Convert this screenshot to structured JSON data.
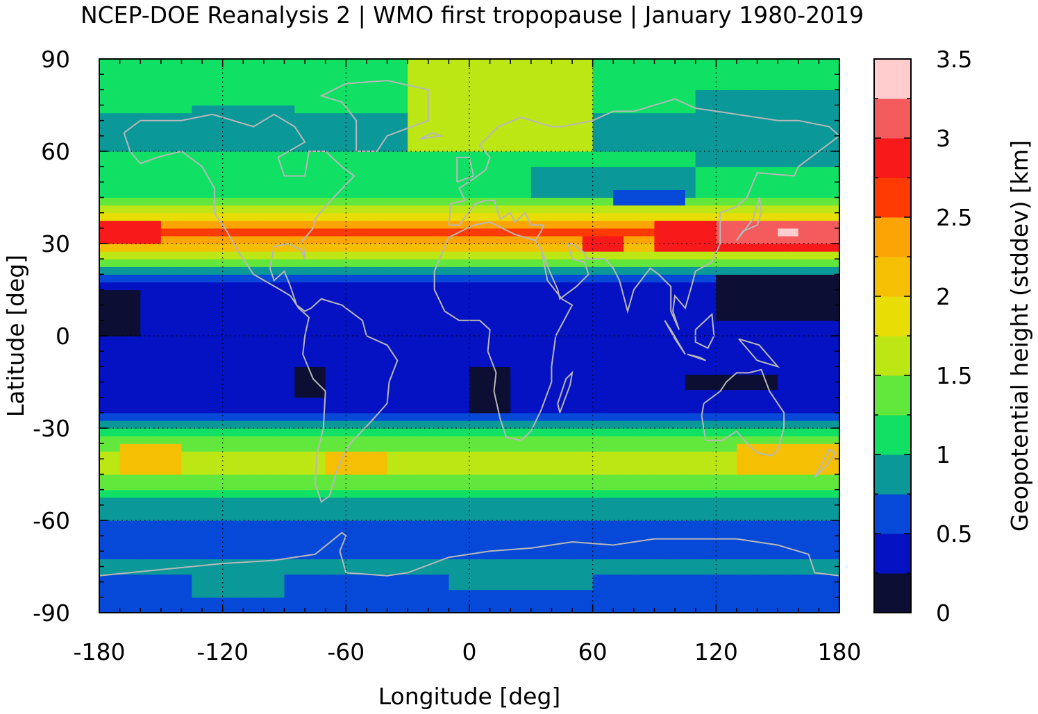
{
  "title": "NCEP-DOE Reanalysis 2 | WMO first tropopause | January 1980-2019",
  "chart_data": {
    "type": "heatmap",
    "xlabel": "Longitude [deg]",
    "ylabel": "Latitude [deg]",
    "xlim": [
      -180,
      180
    ],
    "ylim": [
      -90,
      90
    ],
    "x_ticks": [
      "-180",
      "-120",
      "-60",
      "0",
      "60",
      "120",
      "180"
    ],
    "y_ticks": [
      "90",
      "60",
      "30",
      "0",
      "-30",
      "-60",
      "-90"
    ],
    "grid": "dotted",
    "colorbar": {
      "label": "Geopotential height (stddev) [km]",
      "range": [
        0,
        3.5
      ],
      "step": 0.25,
      "tick_labels": [
        "3.5",
        "3",
        "2.5",
        "2",
        "1.5",
        "1",
        "0.5",
        "0"
      ],
      "colors": [
        "#0c0f33",
        "#0412c4",
        "#0648d8",
        "#0a9899",
        "#10e063",
        "#62e73c",
        "#bde615",
        "#e8dd05",
        "#f5c004",
        "#fba403",
        "#ff3b03",
        "#f8191a",
        "#f45b5d",
        "#ffcdcd"
      ],
      "placement": "right"
    },
    "zonal_profile": {
      "lat": [
        -90,
        -85,
        -80,
        -75,
        -70,
        -65,
        -60,
        -55,
        -50,
        -45,
        -40,
        -35,
        -30,
        -25,
        -20,
        -15,
        -10,
        -5,
        0,
        5,
        10,
        15,
        20,
        25,
        30,
        35,
        40,
        45,
        50,
        55,
        60,
        65,
        70,
        75,
        80,
        85,
        90
      ],
      "stddev_km": [
        0.6,
        0.65,
        0.7,
        0.8,
        0.7,
        0.6,
        0.7,
        0.9,
        1.2,
        1.5,
        1.7,
        1.4,
        0.9,
        0.5,
        0.45,
        0.4,
        0.4,
        0.35,
        0.35,
        0.35,
        0.4,
        0.45,
        0.6,
        1.5,
        2.4,
        2.6,
        1.6,
        1.2,
        1.1,
        1.05,
        1.0,
        0.95,
        0.95,
        1.05,
        1.15,
        1.2,
        1.25
      ]
    },
    "anomalies": [
      {
        "lon": [
          -180,
          -150
        ],
        "lat": [
          30,
          38
        ],
        "stddev_km": 2.9
      },
      {
        "lon": [
          90,
          180
        ],
        "lat": [
          28,
          38
        ],
        "stddev_km": 2.8
      },
      {
        "lon": [
          120,
          180
        ],
        "lat": [
          31,
          38
        ],
        "stddev_km": 3.1
      },
      {
        "lon": [
          150,
          160
        ],
        "lat": [
          33,
          36
        ],
        "stddev_km": 3.4
      },
      {
        "lon": [
          57,
          77
        ],
        "lat": [
          28,
          32
        ],
        "stddev_km": 2.8
      },
      {
        "lon": [
          -180,
          -160
        ],
        "lat": [
          0,
          15
        ],
        "stddev_km": 0.15
      },
      {
        "lon": [
          120,
          180
        ],
        "lat": [
          5,
          20
        ],
        "stddev_km": 0.15
      },
      {
        "lon": [
          -2,
          20
        ],
        "lat": [
          -25,
          -10
        ],
        "stddev_km": 0.15
      },
      {
        "lon": [
          -83,
          -70
        ],
        "lat": [
          -20,
          -10
        ],
        "stddev_km": 0.15
      },
      {
        "lon": [
          105,
          150
        ],
        "lat": [
          -18,
          -12
        ],
        "stddev_km": 0.15
      },
      {
        "lon": [
          110,
          180
        ],
        "lat": [
          55,
          80
        ],
        "stddev_km": 0.85
      },
      {
        "lon": [
          30,
          110
        ],
        "lat": [
          45,
          55
        ],
        "stddev_km": 0.85
      },
      {
        "lon": [
          70,
          105
        ],
        "lat": [
          42,
          47
        ],
        "stddev_km": 0.6
      },
      {
        "lon": [
          -135,
          -85
        ],
        "lat": [
          70,
          75
        ],
        "stddev_km": 0.85
      },
      {
        "lon": [
          -135,
          -90
        ],
        "lat": [
          -85,
          -78
        ],
        "stddev_km": 0.85
      },
      {
        "lon": [
          -10,
          60
        ],
        "lat": [
          -82,
          -75
        ],
        "stddev_km": 0.85
      },
      {
        "lon": [
          -30,
          60
        ],
        "lat": [
          60,
          90
        ],
        "stddev_km": 1.5
      },
      {
        "lon": [
          -70,
          -40
        ],
        "lat": [
          -45,
          -38
        ],
        "stddev_km": 2.1
      },
      {
        "lon": [
          130,
          180
        ],
        "lat": [
          -45,
          -35
        ],
        "stddev_km": 2.0
      },
      {
        "lon": [
          -170,
          -140
        ],
        "lat": [
          -45,
          -35
        ],
        "stddev_km": 2.0
      }
    ]
  }
}
